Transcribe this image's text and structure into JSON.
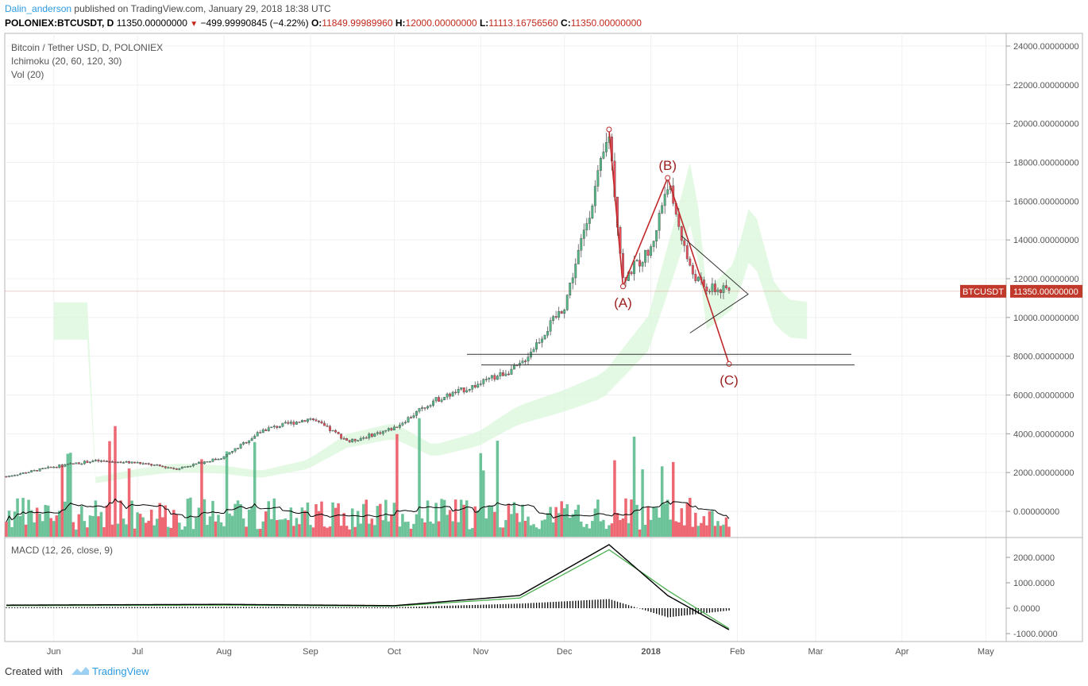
{
  "header": {
    "author": "Dalin_anderson",
    "published_text": "published on TradingView.com, January 29, 2018 18:38 UTC"
  },
  "ticker_line": {
    "symbol": "POLONIEX:BTCUSDT, D",
    "price": "11350.00000000",
    "change": "−499.99990845 (−4.22%)",
    "o_label": "O:",
    "o": "11849.99989960",
    "h_label": "H:",
    "h": "12000.00000000",
    "l_label": "L:",
    "l": "11113.16756560",
    "c_label": "C:",
    "c": "11350.00000000"
  },
  "legend": {
    "series": "Bitcoin / Tether USD, D, POLONIEX",
    "ichimoku": "Ichimoku (20, 60, 120, 30)",
    "vol": "Vol (20)",
    "macd": "MACD (12, 26, close, 9)"
  },
  "price_axis": [
    "24000.00000000",
    "22000.00000000",
    "20000.00000000",
    "18000.00000000",
    "16000.00000000",
    "14000.00000000",
    "12000.00000000",
    "10000.00000000",
    "8000.00000000",
    "6000.00000000",
    "4000.00000000",
    "2000.00000000",
    "0.00000000"
  ],
  "macd_axis": [
    "2000.0000",
    "1000.0000",
    "0.0000",
    "-1000.0000"
  ],
  "time_axis": [
    "Jun",
    "Jul",
    "Aug",
    "Sep",
    "Oct",
    "Nov",
    "Dec",
    "2018",
    "Feb",
    "Mar",
    "Apr",
    "May"
  ],
  "price_tag": {
    "symbol": "BTCUSDT",
    "value": "11350.00000000"
  },
  "wave_labels": {
    "a": "(A)",
    "b": "(B)",
    "c": "(C)"
  },
  "footer": {
    "created_with": "Created with",
    "brand": "TradingView"
  },
  "colors": {
    "up": "#53b987",
    "down": "#eb4d5c",
    "wave": "#c0282a",
    "cloud": "#d9f7d9",
    "macd": "#000000",
    "signal": "#4caf50",
    "price_tag": "#c0392b",
    "author": "#2c9be2"
  },
  "chart_data": {
    "type": "line",
    "title": "Bitcoin / Tether USD, D, POLONIEX",
    "x": [
      "2017-05-15",
      "2017-06-01",
      "2017-06-15",
      "2017-07-01",
      "2017-07-15",
      "2017-08-01",
      "2017-08-15",
      "2017-09-01",
      "2017-09-15",
      "2017-10-01",
      "2017-10-15",
      "2017-11-01",
      "2017-11-15",
      "2017-12-01",
      "2017-12-10",
      "2017-12-17",
      "2017-12-22",
      "2018-01-01",
      "2018-01-07",
      "2018-01-15",
      "2018-01-20",
      "2018-01-29"
    ],
    "series": [
      {
        "name": "BTCUSDT",
        "values": [
          1800,
          2300,
          2600,
          2500,
          2200,
          2800,
          4200,
          4800,
          3600,
          4300,
          5700,
          6600,
          7500,
          10600,
          15500,
          19500,
          12000,
          13500,
          17000,
          12500,
          11500,
          11350
        ]
      }
    ],
    "ylim": [
      0,
      24000
    ],
    "annotations": {
      "A": 11600,
      "B": 17200,
      "C": 7600,
      "support_upper": 8100,
      "support_lower": 7550
    },
    "macd": {
      "x": [
        "2017-05-15",
        "2017-08-01",
        "2017-10-01",
        "2017-11-15",
        "2017-12-17",
        "2018-01-07",
        "2018-01-29"
      ],
      "macd": [
        120,
        150,
        100,
        500,
        2500,
        500,
        -850
      ],
      "signal": [
        100,
        120,
        80,
        400,
        2300,
        700,
        -800
      ],
      "ylim": [
        -1200,
        2800
      ]
    }
  }
}
